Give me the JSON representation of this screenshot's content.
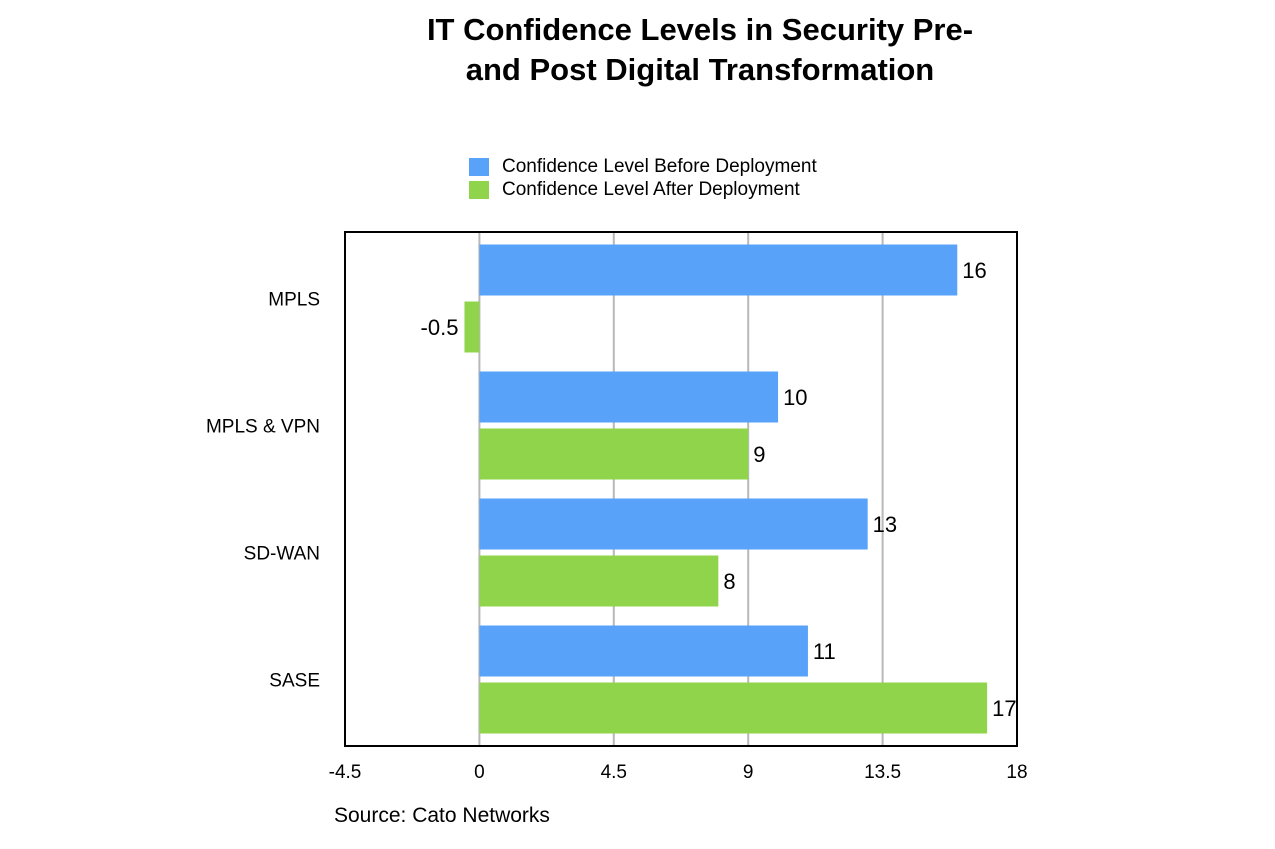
{
  "chart_data": {
    "type": "bar",
    "orientation": "horizontal",
    "title": [
      "IT Confidence Levels in Security Pre-",
      "and Post Digital Transformation"
    ],
    "categories": [
      "MPLS",
      "MPLS & VPN",
      "SD-WAN",
      "SASE"
    ],
    "series": [
      {
        "name": "Confidence Level Before Deployment",
        "color": "#58a2fa",
        "values": [
          16,
          10,
          13,
          11
        ],
        "labels": [
          "16",
          "10",
          "13",
          "11"
        ]
      },
      {
        "name": "Confidence Level After Deployment",
        "color": "#8fd44b",
        "values": [
          -0.5,
          9,
          8,
          17
        ],
        "labels": [
          "-0.5",
          "9",
          "8",
          "17"
        ]
      }
    ],
    "xlim": [
      -4.5,
      18
    ],
    "xticks": [
      -4.5,
      0,
      4.5,
      9,
      13.5,
      18
    ],
    "xtick_labels": [
      "-4.5",
      "0",
      "4.5",
      "9",
      "13.5",
      "18"
    ],
    "grid": true,
    "legend_position": "top"
  },
  "source": "Source: Cato Networks"
}
